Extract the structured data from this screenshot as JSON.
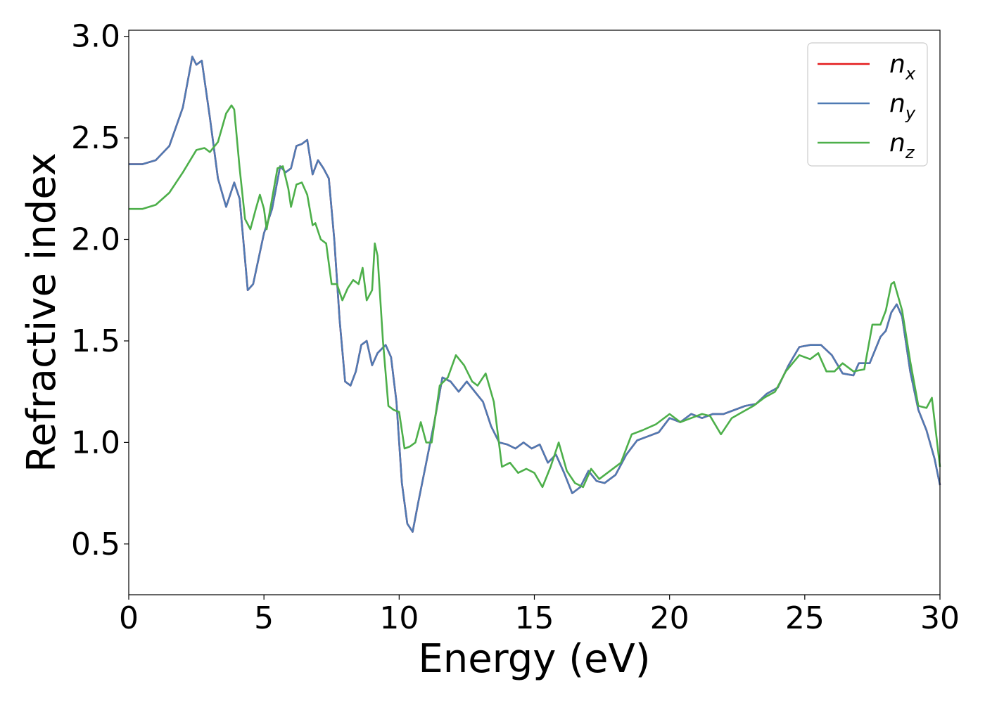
{
  "chart_data": {
    "type": "line",
    "xlabel": "Energy (eV)",
    "ylabel": "Refractive index",
    "xlim": [
      0,
      30
    ],
    "ylim": [
      0.25,
      3.03
    ],
    "xticks": [
      0,
      5,
      10,
      15,
      20,
      25,
      30
    ],
    "xtick_labels": [
      "0",
      "5",
      "10",
      "15",
      "20",
      "25",
      "30"
    ],
    "yticks": [
      0.5,
      1.0,
      1.5,
      2.0,
      2.5,
      3.0
    ],
    "ytick_labels": [
      "0.5",
      "1.0",
      "1.5",
      "2.0",
      "2.5",
      "3.0"
    ],
    "grid": false,
    "legend_position": "top-right",
    "series": [
      {
        "name": "n",
        "subscript": "x",
        "color": "#e41a1c",
        "points": [
          [
            0,
            2.37
          ],
          [
            0.5,
            2.37
          ],
          [
            1.0,
            2.39
          ],
          [
            1.5,
            2.46
          ],
          [
            2.0,
            2.65
          ],
          [
            2.35,
            2.9
          ],
          [
            2.5,
            2.86
          ],
          [
            2.7,
            2.88
          ],
          [
            3.0,
            2.6
          ],
          [
            3.3,
            2.3
          ],
          [
            3.6,
            2.16
          ],
          [
            3.9,
            2.28
          ],
          [
            4.1,
            2.2
          ],
          [
            4.3,
            1.9
          ],
          [
            4.4,
            1.75
          ],
          [
            4.6,
            1.78
          ],
          [
            5.0,
            2.03
          ],
          [
            5.3,
            2.15
          ],
          [
            5.6,
            2.36
          ],
          [
            5.8,
            2.33
          ],
          [
            6.0,
            2.35
          ],
          [
            6.2,
            2.46
          ],
          [
            6.4,
            2.47
          ],
          [
            6.6,
            2.49
          ],
          [
            6.8,
            2.32
          ],
          [
            7.0,
            2.39
          ],
          [
            7.2,
            2.35
          ],
          [
            7.4,
            2.3
          ],
          [
            7.6,
            2.0
          ],
          [
            7.8,
            1.6
          ],
          [
            8.0,
            1.3
          ],
          [
            8.2,
            1.28
          ],
          [
            8.4,
            1.35
          ],
          [
            8.6,
            1.48
          ],
          [
            8.8,
            1.5
          ],
          [
            9.0,
            1.38
          ],
          [
            9.2,
            1.44
          ],
          [
            9.5,
            1.48
          ],
          [
            9.7,
            1.42
          ],
          [
            9.9,
            1.2
          ],
          [
            10.1,
            0.8
          ],
          [
            10.3,
            0.6
          ],
          [
            10.5,
            0.56
          ],
          [
            10.7,
            0.7
          ],
          [
            11.0,
            0.9
          ],
          [
            11.3,
            1.1
          ],
          [
            11.6,
            1.32
          ],
          [
            11.9,
            1.3
          ],
          [
            12.2,
            1.25
          ],
          [
            12.5,
            1.3
          ],
          [
            12.8,
            1.25
          ],
          [
            13.1,
            1.2
          ],
          [
            13.4,
            1.08
          ],
          [
            13.7,
            1.0
          ],
          [
            14.0,
            0.99
          ],
          [
            14.3,
            0.97
          ],
          [
            14.6,
            1.0
          ],
          [
            14.9,
            0.97
          ],
          [
            15.2,
            0.99
          ],
          [
            15.5,
            0.9
          ],
          [
            15.8,
            0.94
          ],
          [
            16.1,
            0.85
          ],
          [
            16.4,
            0.75
          ],
          [
            16.7,
            0.78
          ],
          [
            17.0,
            0.86
          ],
          [
            17.3,
            0.81
          ],
          [
            17.6,
            0.8
          ],
          [
            18.0,
            0.84
          ],
          [
            18.4,
            0.94
          ],
          [
            18.8,
            1.01
          ],
          [
            19.2,
            1.03
          ],
          [
            19.6,
            1.05
          ],
          [
            20.0,
            1.12
          ],
          [
            20.4,
            1.1
          ],
          [
            20.8,
            1.14
          ],
          [
            21.2,
            1.12
          ],
          [
            21.6,
            1.14
          ],
          [
            22.0,
            1.14
          ],
          [
            22.4,
            1.16
          ],
          [
            22.8,
            1.18
          ],
          [
            23.2,
            1.19
          ],
          [
            23.6,
            1.24
          ],
          [
            24.0,
            1.27
          ],
          [
            24.4,
            1.38
          ],
          [
            24.8,
            1.47
          ],
          [
            25.2,
            1.48
          ],
          [
            25.6,
            1.48
          ],
          [
            26.0,
            1.43
          ],
          [
            26.4,
            1.34
          ],
          [
            26.8,
            1.33
          ],
          [
            27.0,
            1.39
          ],
          [
            27.4,
            1.39
          ],
          [
            27.8,
            1.52
          ],
          [
            28.0,
            1.55
          ],
          [
            28.2,
            1.64
          ],
          [
            28.4,
            1.68
          ],
          [
            28.6,
            1.62
          ],
          [
            28.9,
            1.35
          ],
          [
            29.2,
            1.16
          ],
          [
            29.5,
            1.06
          ],
          [
            29.8,
            0.92
          ],
          [
            30.0,
            0.79
          ]
        ]
      },
      {
        "name": "n",
        "subscript": "y",
        "color": "#4f7ab3",
        "points": [
          [
            0,
            2.37
          ],
          [
            0.5,
            2.37
          ],
          [
            1.0,
            2.39
          ],
          [
            1.5,
            2.46
          ],
          [
            2.0,
            2.65
          ],
          [
            2.35,
            2.9
          ],
          [
            2.5,
            2.86
          ],
          [
            2.7,
            2.88
          ],
          [
            3.0,
            2.6
          ],
          [
            3.3,
            2.3
          ],
          [
            3.6,
            2.16
          ],
          [
            3.9,
            2.28
          ],
          [
            4.1,
            2.2
          ],
          [
            4.3,
            1.9
          ],
          [
            4.4,
            1.75
          ],
          [
            4.6,
            1.78
          ],
          [
            5.0,
            2.03
          ],
          [
            5.3,
            2.15
          ],
          [
            5.6,
            2.36
          ],
          [
            5.8,
            2.33
          ],
          [
            6.0,
            2.35
          ],
          [
            6.2,
            2.46
          ],
          [
            6.4,
            2.47
          ],
          [
            6.6,
            2.49
          ],
          [
            6.8,
            2.32
          ],
          [
            7.0,
            2.39
          ],
          [
            7.2,
            2.35
          ],
          [
            7.4,
            2.3
          ],
          [
            7.6,
            2.0
          ],
          [
            7.8,
            1.6
          ],
          [
            8.0,
            1.3
          ],
          [
            8.2,
            1.28
          ],
          [
            8.4,
            1.35
          ],
          [
            8.6,
            1.48
          ],
          [
            8.8,
            1.5
          ],
          [
            9.0,
            1.38
          ],
          [
            9.2,
            1.44
          ],
          [
            9.5,
            1.48
          ],
          [
            9.7,
            1.42
          ],
          [
            9.9,
            1.2
          ],
          [
            10.1,
            0.8
          ],
          [
            10.3,
            0.6
          ],
          [
            10.5,
            0.56
          ],
          [
            10.7,
            0.7
          ],
          [
            11.0,
            0.9
          ],
          [
            11.3,
            1.1
          ],
          [
            11.6,
            1.32
          ],
          [
            11.9,
            1.3
          ],
          [
            12.2,
            1.25
          ],
          [
            12.5,
            1.3
          ],
          [
            12.8,
            1.25
          ],
          [
            13.1,
            1.2
          ],
          [
            13.4,
            1.08
          ],
          [
            13.7,
            1.0
          ],
          [
            14.0,
            0.99
          ],
          [
            14.3,
            0.97
          ],
          [
            14.6,
            1.0
          ],
          [
            14.9,
            0.97
          ],
          [
            15.2,
            0.99
          ],
          [
            15.5,
            0.9
          ],
          [
            15.8,
            0.94
          ],
          [
            16.1,
            0.85
          ],
          [
            16.4,
            0.75
          ],
          [
            16.7,
            0.78
          ],
          [
            17.0,
            0.86
          ],
          [
            17.3,
            0.81
          ],
          [
            17.6,
            0.8
          ],
          [
            18.0,
            0.84
          ],
          [
            18.4,
            0.94
          ],
          [
            18.8,
            1.01
          ],
          [
            19.2,
            1.03
          ],
          [
            19.6,
            1.05
          ],
          [
            20.0,
            1.12
          ],
          [
            20.4,
            1.1
          ],
          [
            20.8,
            1.14
          ],
          [
            21.2,
            1.12
          ],
          [
            21.6,
            1.14
          ],
          [
            22.0,
            1.14
          ],
          [
            22.4,
            1.16
          ],
          [
            22.8,
            1.18
          ],
          [
            23.2,
            1.19
          ],
          [
            23.6,
            1.24
          ],
          [
            24.0,
            1.27
          ],
          [
            24.4,
            1.38
          ],
          [
            24.8,
            1.47
          ],
          [
            25.2,
            1.48
          ],
          [
            25.6,
            1.48
          ],
          [
            26.0,
            1.43
          ],
          [
            26.4,
            1.34
          ],
          [
            26.8,
            1.33
          ],
          [
            27.0,
            1.39
          ],
          [
            27.4,
            1.39
          ],
          [
            27.8,
            1.52
          ],
          [
            28.0,
            1.55
          ],
          [
            28.2,
            1.64
          ],
          [
            28.4,
            1.68
          ],
          [
            28.6,
            1.62
          ],
          [
            28.9,
            1.35
          ],
          [
            29.2,
            1.16
          ],
          [
            29.5,
            1.06
          ],
          [
            29.8,
            0.92
          ],
          [
            30.0,
            0.79
          ]
        ]
      },
      {
        "name": "n",
        "subscript": "z",
        "color": "#4daf4a",
        "points": [
          [
            0,
            2.15
          ],
          [
            0.5,
            2.15
          ],
          [
            1.0,
            2.17
          ],
          [
            1.5,
            2.23
          ],
          [
            2.0,
            2.33
          ],
          [
            2.5,
            2.44
          ],
          [
            2.8,
            2.45
          ],
          [
            3.0,
            2.43
          ],
          [
            3.3,
            2.48
          ],
          [
            3.6,
            2.62
          ],
          [
            3.8,
            2.66
          ],
          [
            3.9,
            2.64
          ],
          [
            4.1,
            2.35
          ],
          [
            4.3,
            2.1
          ],
          [
            4.5,
            2.05
          ],
          [
            4.7,
            2.15
          ],
          [
            4.85,
            2.22
          ],
          [
            5.0,
            2.15
          ],
          [
            5.1,
            2.05
          ],
          [
            5.3,
            2.2
          ],
          [
            5.5,
            2.35
          ],
          [
            5.7,
            2.36
          ],
          [
            5.9,
            2.25
          ],
          [
            6.0,
            2.16
          ],
          [
            6.2,
            2.27
          ],
          [
            6.4,
            2.28
          ],
          [
            6.6,
            2.22
          ],
          [
            6.8,
            2.07
          ],
          [
            6.9,
            2.08
          ],
          [
            7.1,
            2.0
          ],
          [
            7.3,
            1.98
          ],
          [
            7.5,
            1.78
          ],
          [
            7.7,
            1.78
          ],
          [
            7.9,
            1.7
          ],
          [
            8.1,
            1.76
          ],
          [
            8.3,
            1.8
          ],
          [
            8.5,
            1.78
          ],
          [
            8.65,
            1.86
          ],
          [
            8.8,
            1.7
          ],
          [
            9.0,
            1.75
          ],
          [
            9.1,
            1.98
          ],
          [
            9.2,
            1.92
          ],
          [
            9.4,
            1.5
          ],
          [
            9.6,
            1.18
          ],
          [
            9.8,
            1.16
          ],
          [
            10.0,
            1.15
          ],
          [
            10.2,
            0.97
          ],
          [
            10.4,
            0.98
          ],
          [
            10.6,
            1.0
          ],
          [
            10.8,
            1.1
          ],
          [
            11.0,
            1.0
          ],
          [
            11.2,
            1.0
          ],
          [
            11.5,
            1.28
          ],
          [
            11.8,
            1.32
          ],
          [
            12.1,
            1.43
          ],
          [
            12.4,
            1.38
          ],
          [
            12.7,
            1.3
          ],
          [
            12.9,
            1.28
          ],
          [
            13.2,
            1.34
          ],
          [
            13.5,
            1.2
          ],
          [
            13.8,
            0.88
          ],
          [
            14.1,
            0.9
          ],
          [
            14.4,
            0.85
          ],
          [
            14.7,
            0.87
          ],
          [
            15.0,
            0.85
          ],
          [
            15.3,
            0.78
          ],
          [
            15.6,
            0.88
          ],
          [
            15.9,
            1.0
          ],
          [
            16.2,
            0.86
          ],
          [
            16.5,
            0.8
          ],
          [
            16.8,
            0.78
          ],
          [
            17.1,
            0.87
          ],
          [
            17.4,
            0.82
          ],
          [
            17.8,
            0.86
          ],
          [
            18.2,
            0.9
          ],
          [
            18.6,
            1.04
          ],
          [
            19.0,
            1.06
          ],
          [
            19.5,
            1.09
          ],
          [
            20.0,
            1.14
          ],
          [
            20.4,
            1.1
          ],
          [
            20.8,
            1.12
          ],
          [
            21.2,
            1.14
          ],
          [
            21.5,
            1.13
          ],
          [
            21.9,
            1.04
          ],
          [
            22.3,
            1.12
          ],
          [
            22.7,
            1.15
          ],
          [
            23.1,
            1.18
          ],
          [
            23.5,
            1.22
          ],
          [
            23.9,
            1.25
          ],
          [
            24.3,
            1.35
          ],
          [
            24.8,
            1.43
          ],
          [
            25.2,
            1.41
          ],
          [
            25.5,
            1.44
          ],
          [
            25.8,
            1.35
          ],
          [
            26.1,
            1.35
          ],
          [
            26.4,
            1.39
          ],
          [
            26.8,
            1.35
          ],
          [
            27.2,
            1.36
          ],
          [
            27.5,
            1.58
          ],
          [
            27.8,
            1.58
          ],
          [
            28.0,
            1.65
          ],
          [
            28.2,
            1.78
          ],
          [
            28.3,
            1.79
          ],
          [
            28.6,
            1.65
          ],
          [
            28.9,
            1.4
          ],
          [
            29.2,
            1.18
          ],
          [
            29.5,
            1.17
          ],
          [
            29.7,
            1.22
          ],
          [
            30.0,
            0.88
          ]
        ]
      }
    ]
  }
}
